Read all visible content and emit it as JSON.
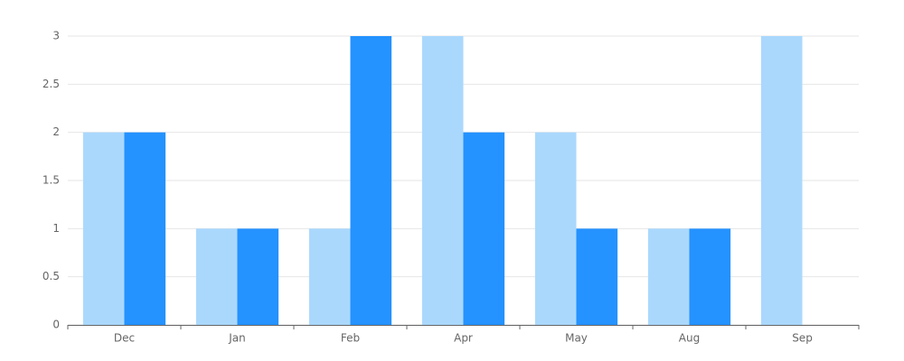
{
  "chart_data": {
    "type": "bar",
    "categories": [
      "Dec",
      "Jan",
      "Feb",
      "Apr",
      "May",
      "Aug",
      "Sep"
    ],
    "series": [
      {
        "color": "#aad8fd",
        "values": [
          2,
          1,
          1,
          3,
          2,
          1,
          3
        ]
      },
      {
        "color": "#2492ff",
        "values": [
          2,
          1,
          3,
          2,
          1,
          1,
          0
        ]
      }
    ],
    "ylim": [
      0,
      3
    ],
    "yticks": [
      0,
      0.5,
      1,
      1.5,
      2,
      2.5,
      3
    ],
    "grid": true
  }
}
